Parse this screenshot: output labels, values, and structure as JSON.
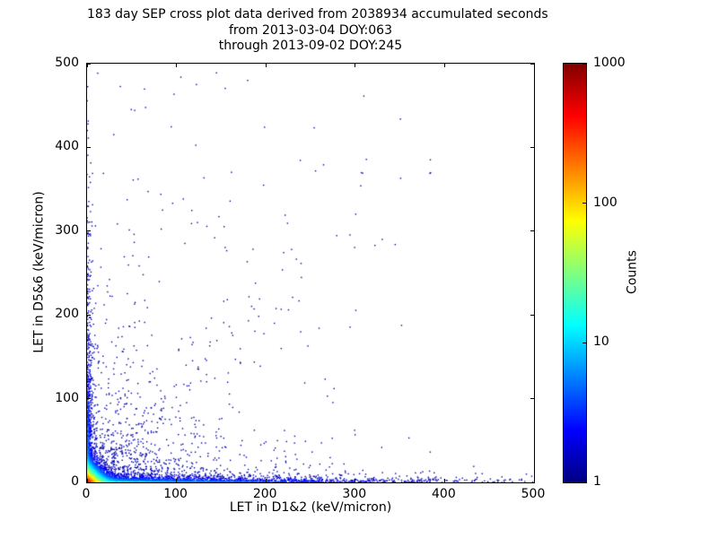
{
  "chart_data": {
    "type": "scatter",
    "title_lines": [
      "183 day SEP cross plot data derived from 2038934 accumulated seconds",
      "from 2013-03-04 DOY:063",
      "through 2013-09-02 DOY:245"
    ],
    "xlabel": "LET in D1&2 (keV/micron)",
    "ylabel": "LET in D5&6 (keV/micron)",
    "xlim": [
      0,
      500
    ],
    "ylim": [
      0,
      500
    ],
    "xticks": [
      0,
      100,
      200,
      300,
      400,
      500
    ],
    "yticks": [
      0,
      100,
      200,
      300,
      400,
      500
    ],
    "grid": false,
    "background": "#ffffff",
    "colorbar": {
      "label": "Counts",
      "scale": "log",
      "min": 1,
      "max": 1000,
      "ticks": [
        1,
        10,
        100,
        1000
      ],
      "colormap": "jet",
      "stops": [
        "#000080",
        "#0000ff",
        "#00ffff",
        "#ffff00",
        "#ff0000",
        "#800000"
      ],
      "stop_positions": [
        0,
        0.125,
        0.375,
        0.625,
        0.875,
        1
      ]
    },
    "description": "Density cross plot: hot (red/yellow/green) core of counts near the origin below ~20 keV/micron in both detectors, a dense band of single counts along the D1&2 axis out to ~500, a column along the D5&6 axis up to ~300, a sparse diagonal coincidence track, and isolated dark-blue single counts scattered over the lower-left half of the plane.",
    "distribution": {
      "seed": 20130304,
      "point_size": 1.4,
      "clusters": [
        {
          "n": 2600,
          "x": {
            "exp": 120
          },
          "y": {
            "exp": 2.5
          }
        },
        {
          "n": 500,
          "x": {
            "exp": 90
          },
          "y": {
            "exp": 14
          }
        },
        {
          "n": 900,
          "x": {
            "exp": 2.5
          },
          "y": {
            "exp": 80
          }
        },
        {
          "n": 700,
          "x": {
            "exp": 60
          },
          "y": {
            "exp": 50
          }
        },
        {
          "n": 120,
          "x": {
            "exp": 130
          },
          "y": {
            "propx": [
              0.82,
              0.45
            ]
          }
        },
        {
          "n": 110,
          "x": {
            "exp": 130
          },
          "y": {
            "uniform": [
              100,
              490
            ]
          }
        },
        {
          "n": 9000,
          "x": {
            "exp": 5.5
          },
          "y": {
            "exp": 5.5
          }
        }
      ],
      "density_terms": [
        {
          "a": 600,
          "sx": 5.5,
          "sy": 5.5
        },
        {
          "a": 18,
          "sx": 120,
          "sy": 2.5
        },
        {
          "a": 8,
          "sx": 2.5,
          "sy": 80
        }
      ],
      "floor": 1.3
    }
  }
}
